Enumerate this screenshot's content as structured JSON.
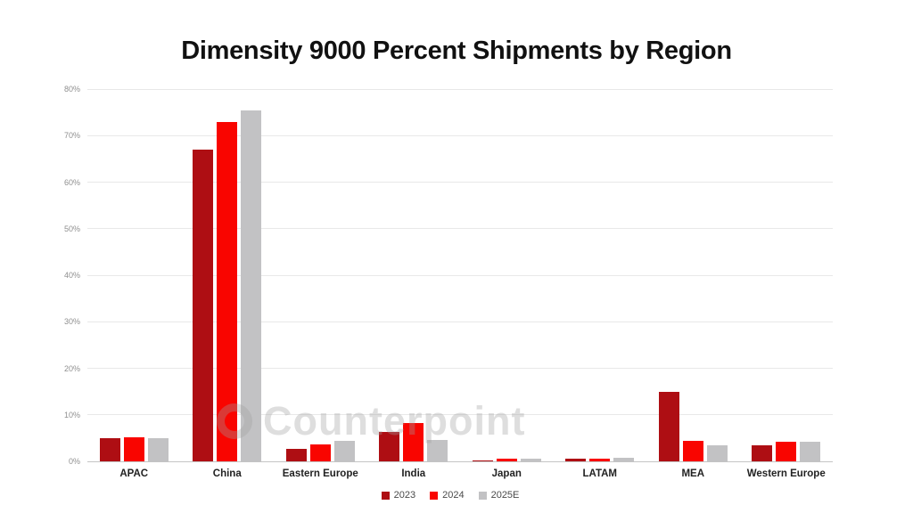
{
  "page": {
    "background": "#ffffff"
  },
  "chart_data": {
    "type": "bar",
    "title": "Dimensity 9000 Percent Shipments by Region",
    "categories": [
      "APAC",
      "China",
      "Eastern Europe",
      "India",
      "Japan",
      "LATAM",
      "MEA",
      "Western Europe"
    ],
    "series": [
      {
        "name": "2023",
        "color": "#ae0e13",
        "values": [
          5.0,
          67.0,
          2.6,
          6.3,
          0.15,
          0.5,
          15.0,
          3.5
        ]
      },
      {
        "name": "2024",
        "color": "#f90500",
        "values": [
          5.2,
          73.0,
          3.7,
          8.3,
          0.5,
          0.5,
          4.5,
          4.3
        ]
      },
      {
        "name": "2025E",
        "color": "#c2c2c4",
        "values": [
          5.0,
          75.5,
          4.4,
          4.6,
          0.6,
          0.8,
          3.5,
          4.3
        ]
      }
    ],
    "xlabel": "",
    "ylabel": "",
    "ylim": [
      0,
      80
    ],
    "y_ticks": [
      "0%",
      "10%",
      "20%",
      "30%",
      "40%",
      "50%",
      "60%",
      "70%",
      "80%"
    ],
    "grid": true,
    "legend_position": "bottom"
  },
  "watermark": {
    "text": "Counterpoint"
  },
  "colors": {
    "grid": "#e8e8e8",
    "axis_line": "#c4c4c4",
    "tick_text": "#8f8f8f",
    "category_text": "#222222",
    "legend_text": "#4a4a4a",
    "title_text": "#111111"
  }
}
